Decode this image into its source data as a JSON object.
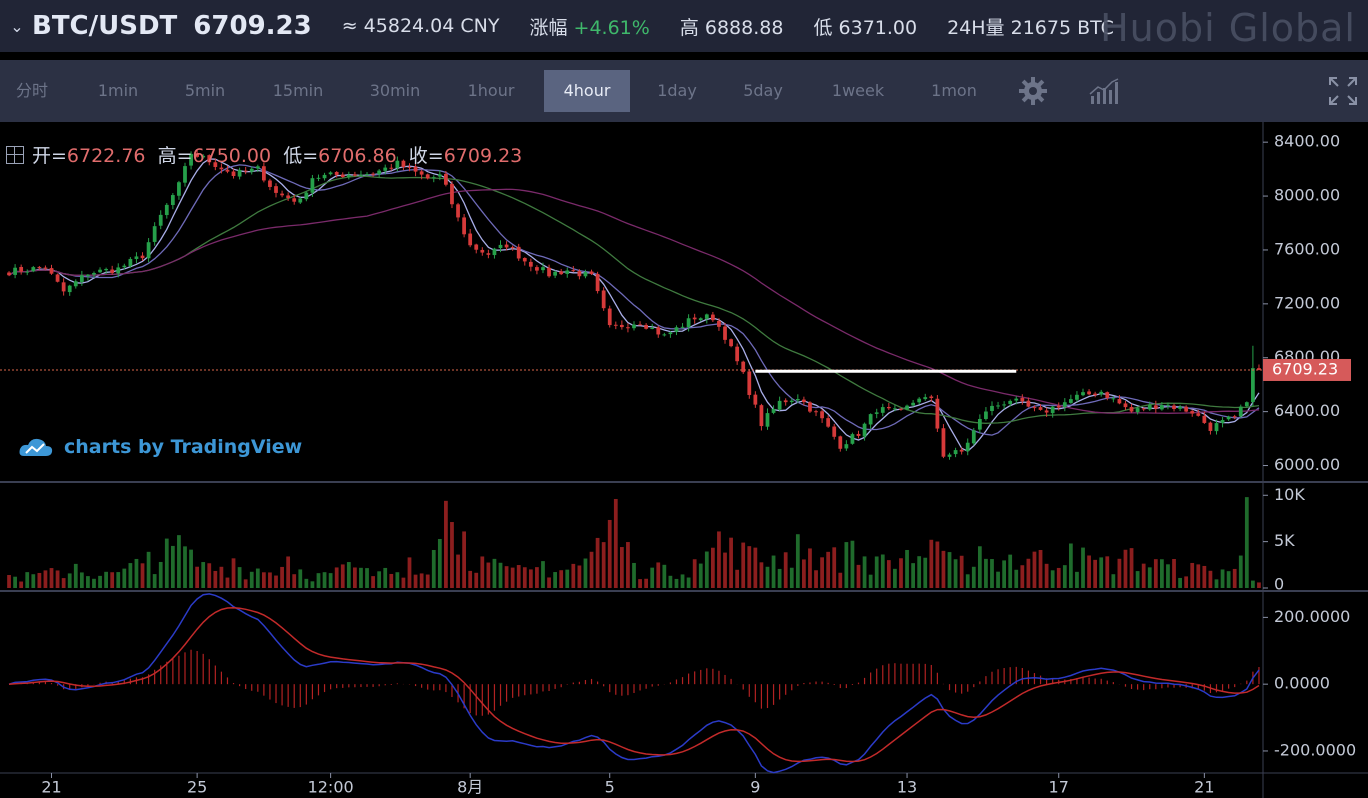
{
  "header": {
    "pair": "BTC/USDT",
    "last_price": "6709.23",
    "cny": "≈ 45824.04 CNY",
    "change_label": "涨幅",
    "change_value": "+4.61%",
    "high_label": "高",
    "high_value": "6888.88",
    "low_label": "低",
    "low_value": "6371.00",
    "vol_label": "24H量",
    "vol_value": "21675 BTC",
    "brand": "Huobi Global"
  },
  "toolbar": {
    "intervals": [
      "分时",
      "1min",
      "5min",
      "15min",
      "30min",
      "1hour",
      "4hour",
      "1day",
      "5day",
      "1week",
      "1mon"
    ],
    "active": "4hour",
    "icons": [
      "gear-icon",
      "indicator-icon",
      "fullscreen-icon"
    ]
  },
  "legend": {
    "open_label": "开=",
    "open": "6722.76",
    "high_label": "高=",
    "high": "6750.00",
    "low_label": "低=",
    "low": "6706.86",
    "close_label": "收=",
    "close": "6709.23"
  },
  "watermark": "charts by TradingView",
  "colors": {
    "up": "#26a04a",
    "down": "#d63a3a",
    "ma5": "#a9aee8",
    "ma10": "#6e6ab8",
    "ma30": "#3f7a3f",
    "ma60": "#7a2a6a",
    "macd": "#2b3bc8",
    "signal": "#c22a2a",
    "accent": "#5a6480"
  },
  "chart_data": {
    "type": "candlestick",
    "price_axis": {
      "ticks": [
        6000,
        6400,
        6800,
        7200,
        7600,
        8000,
        8400
      ],
      "labels": [
        "6000.00",
        "6400.00",
        "6800.00",
        "7200.00",
        "7600.00",
        "8000.00",
        "8400.00"
      ],
      "ylim": [
        5900,
        8520
      ]
    },
    "current_price": "6709.23",
    "horizontal_line": {
      "price": 6700,
      "from_index": 123,
      "to_index": 166
    },
    "volume_axis": {
      "labels": [
        "10K",
        "5K",
        "0"
      ],
      "ticks": [
        10000,
        5000,
        0
      ],
      "ylim": [
        0,
        11000
      ]
    },
    "macd_axis": {
      "labels": [
        "200.0000",
        "0.0000",
        "-200.0000"
      ],
      "ticks": [
        200,
        0,
        -200
      ],
      "ylim": [
        -260,
        270
      ]
    },
    "x_labels": [
      {
        "index": 7,
        "label": "21"
      },
      {
        "index": 31,
        "label": "25"
      },
      {
        "index": 53,
        "label": "12:00"
      },
      {
        "index": 76,
        "label": "8月"
      },
      {
        "index": 99,
        "label": "5"
      },
      {
        "index": 123,
        "label": "9"
      },
      {
        "index": 148,
        "label": "13"
      },
      {
        "index": 173,
        "label": "17"
      },
      {
        "index": 197,
        "label": "21"
      }
    ],
    "candle_count": 207,
    "close_anchors": [
      [
        0,
        7440
      ],
      [
        6,
        7470
      ],
      [
        9,
        7290
      ],
      [
        13,
        7430
      ],
      [
        18,
        7460
      ],
      [
        22,
        7560
      ],
      [
        25,
        7850
      ],
      [
        28,
        8080
      ],
      [
        30,
        8320
      ],
      [
        33,
        8260
      ],
      [
        37,
        8160
      ],
      [
        41,
        8200
      ],
      [
        44,
        8020
      ],
      [
        48,
        7960
      ],
      [
        50,
        8140
      ],
      [
        55,
        8160
      ],
      [
        60,
        8170
      ],
      [
        64,
        8240
      ],
      [
        69,
        8130
      ],
      [
        71,
        8150
      ],
      [
        72,
        8060
      ],
      [
        74,
        7830
      ],
      [
        76,
        7630
      ],
      [
        79,
        7570
      ],
      [
        82,
        7640
      ],
      [
        85,
        7520
      ],
      [
        89,
        7420
      ],
      [
        92,
        7450
      ],
      [
        96,
        7400
      ],
      [
        99,
        7020
      ],
      [
        104,
        7070
      ],
      [
        108,
        6960
      ],
      [
        113,
        7100
      ],
      [
        116,
        7100
      ],
      [
        118,
        6960
      ],
      [
        121,
        6670
      ],
      [
        124,
        6310
      ],
      [
        127,
        6470
      ],
      [
        130,
        6510
      ],
      [
        134,
        6340
      ],
      [
        137,
        6150
      ],
      [
        140,
        6240
      ],
      [
        143,
        6420
      ],
      [
        147,
        6390
      ],
      [
        150,
        6510
      ],
      [
        152,
        6480
      ],
      [
        154,
        6080
      ],
      [
        157,
        6100
      ],
      [
        161,
        6410
      ],
      [
        165,
        6490
      ],
      [
        170,
        6390
      ],
      [
        176,
        6510
      ],
      [
        180,
        6550
      ],
      [
        185,
        6400
      ],
      [
        190,
        6460
      ],
      [
        195,
        6400
      ],
      [
        198,
        6280
      ],
      [
        202,
        6360
      ],
      [
        204,
        6470
      ],
      [
        205,
        6722.76
      ],
      [
        206,
        6709.23
      ]
    ],
    "volume_peaks": [
      [
        0,
        1400
      ],
      [
        6,
        1900
      ],
      [
        11,
        2600
      ],
      [
        17,
        1700
      ],
      [
        23,
        3900
      ],
      [
        28,
        5700
      ],
      [
        32,
        2800
      ],
      [
        37,
        3200
      ],
      [
        41,
        2100
      ],
      [
        46,
        3400
      ],
      [
        51,
        1600
      ],
      [
        56,
        2800
      ],
      [
        61,
        1800
      ],
      [
        66,
        3300
      ],
      [
        70,
        4100
      ],
      [
        72,
        9400
      ],
      [
        75,
        6100
      ],
      [
        78,
        3400
      ],
      [
        83,
        2200
      ],
      [
        88,
        2900
      ],
      [
        93,
        2600
      ],
      [
        97,
        5400
      ],
      [
        100,
        9600
      ],
      [
        103,
        2700
      ],
      [
        108,
        2500
      ],
      [
        113,
        3100
      ],
      [
        117,
        6100
      ],
      [
        121,
        4900
      ],
      [
        126,
        3500
      ],
      [
        130,
        5800
      ],
      [
        135,
        3900
      ],
      [
        139,
        5100
      ],
      [
        143,
        3400
      ],
      [
        148,
        4100
      ],
      [
        152,
        5200
      ],
      [
        156,
        3100
      ],
      [
        160,
        4500
      ],
      [
        165,
        3600
      ],
      [
        170,
        4100
      ],
      [
        175,
        4800
      ],
      [
        180,
        3300
      ],
      [
        185,
        4300
      ],
      [
        190,
        3100
      ],
      [
        195,
        2700
      ],
      [
        200,
        2000
      ],
      [
        203,
        3500
      ],
      [
        204,
        9800
      ],
      [
        205,
        800
      ],
      [
        206,
        600
      ]
    ]
  }
}
